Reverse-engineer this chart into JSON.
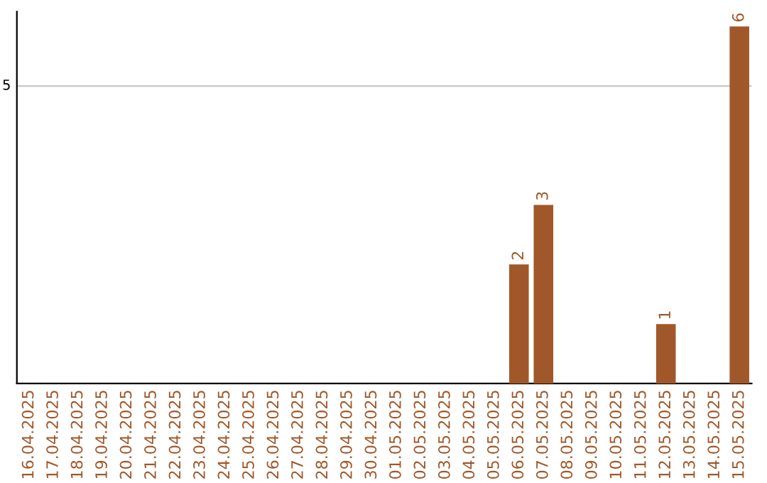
{
  "chart_data": {
    "type": "bar",
    "categories": [
      "16.04.2025",
      "17.04.2025",
      "18.04.2025",
      "19.04.2025",
      "20.04.2025",
      "21.04.2025",
      "22.04.2025",
      "23.04.2025",
      "24.04.2025",
      "25.04.2025",
      "26.04.2025",
      "27.04.2025",
      "28.04.2025",
      "29.04.2025",
      "30.04.2025",
      "01.05.2025",
      "02.05.2025",
      "03.05.2025",
      "04.05.2025",
      "05.05.2025",
      "06.05.2025",
      "07.05.2025",
      "08.05.2025",
      "09.05.2025",
      "10.05.2025",
      "11.05.2025",
      "12.05.2025",
      "13.05.2025",
      "14.05.2025",
      "15.05.2025"
    ],
    "values": [
      null,
      null,
      null,
      null,
      null,
      null,
      null,
      null,
      null,
      null,
      null,
      null,
      null,
      null,
      null,
      null,
      null,
      null,
      null,
      null,
      2,
      3,
      null,
      null,
      null,
      null,
      1,
      null,
      null,
      6
    ],
    "value_labels": [
      null,
      null,
      null,
      null,
      null,
      null,
      null,
      null,
      null,
      null,
      null,
      null,
      null,
      null,
      null,
      null,
      null,
      null,
      null,
      null,
      "2",
      "3",
      null,
      null,
      null,
      null,
      "1",
      null,
      null,
      "6"
    ],
    "ylim": [
      0,
      6.25
    ],
    "color": "#a0582a",
    "ref_lines": [
      {
        "axis": "y",
        "value": 5,
        "label": "5",
        "color": "#c8c8c8"
      }
    ]
  }
}
